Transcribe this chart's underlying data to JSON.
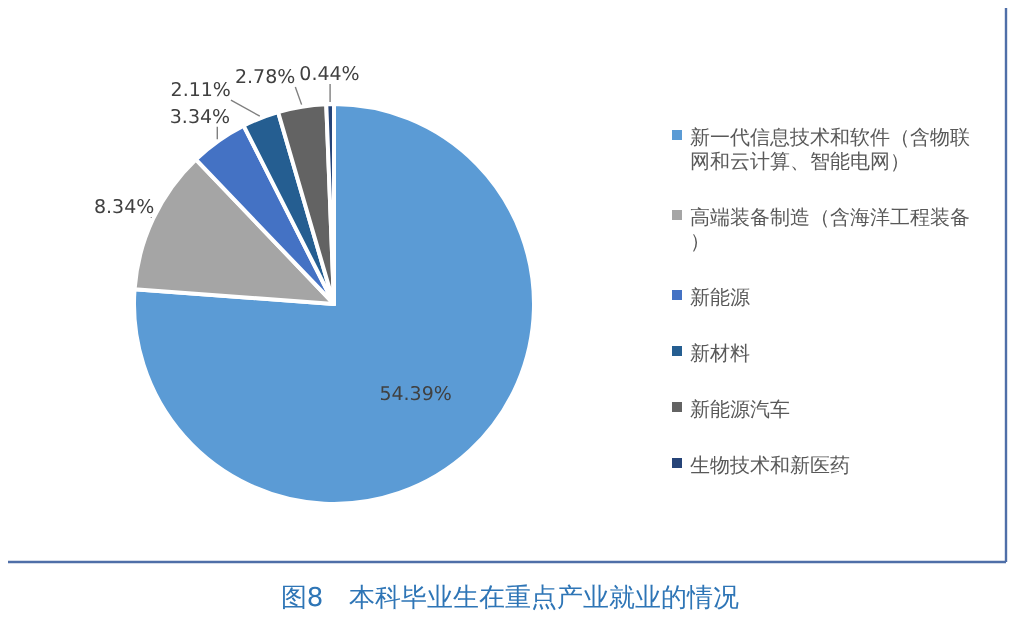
{
  "chart_data": {
    "type": "pie",
    "title": "图8　本科毕业生在重点产业就业的情况",
    "categories": [
      "新一代信息技术和软件（含物联网和云计算、智能电网）",
      "高端装备制造（含海洋工程装备）",
      "新能源",
      "新材料",
      "新能源汽车",
      "生物技术和新医药"
    ],
    "values": [
      54.39,
      8.34,
      3.34,
      2.11,
      2.78,
      0.44
    ],
    "value_labels": [
      "54.39%",
      "8.34%",
      "3.34%",
      "2.11%",
      "2.78%",
      "0.44%"
    ],
    "colors": [
      "#5b9bd5",
      "#a5a5a5",
      "#4472c4",
      "#255e91",
      "#636363",
      "#264478"
    ],
    "legend": "right"
  }
}
